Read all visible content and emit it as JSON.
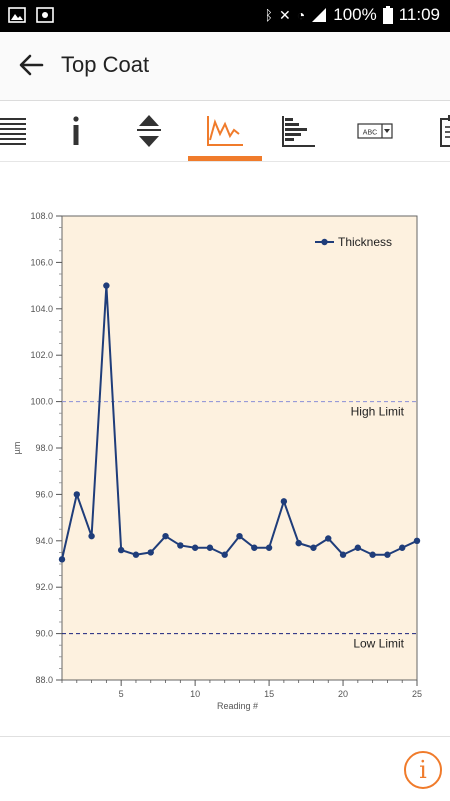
{
  "status": {
    "battery": "100%",
    "time": "11:09"
  },
  "header": {
    "title": "Top Coat"
  },
  "tabs": [
    {
      "icon": "list-lines-icon"
    },
    {
      "icon": "info-icon"
    },
    {
      "icon": "up-down-arrows-icon"
    },
    {
      "icon": "line-chart-icon",
      "active": true
    },
    {
      "icon": "histogram-icon"
    },
    {
      "icon": "dropdown-abc-icon",
      "label": "ABC"
    },
    {
      "icon": "clipboard-icon"
    }
  ],
  "colors": {
    "accent": "#f07b2b",
    "series": "#1f3d7a",
    "plot_bg": "#fdf1df"
  },
  "chart_data": {
    "type": "line",
    "xlabel": "Reading #",
    "ylabel": "µm",
    "xlim": [
      1,
      25
    ],
    "ylim": [
      88.0,
      108.0
    ],
    "xticks": [
      5,
      10,
      15,
      20,
      25
    ],
    "yticks": [
      "88.0",
      "90.0",
      "92.0",
      "94.0",
      "96.0",
      "98.0",
      "100.0",
      "102.0",
      "104.0",
      "106.0",
      "108.0"
    ],
    "legend": {
      "position": "top-right",
      "entries": [
        "Thickness"
      ]
    },
    "series": [
      {
        "name": "Thickness",
        "x": [
          1,
          2,
          3,
          4,
          5,
          6,
          7,
          8,
          9,
          10,
          11,
          12,
          13,
          14,
          15,
          16,
          17,
          18,
          19,
          20,
          21,
          22,
          23,
          24,
          25
        ],
        "values": [
          93.2,
          96.0,
          94.2,
          105.0,
          93.6,
          93.4,
          93.5,
          94.2,
          93.8,
          93.7,
          93.7,
          93.4,
          94.2,
          93.7,
          93.7,
          95.7,
          93.9,
          93.7,
          94.1,
          93.4,
          93.7,
          93.4,
          93.4,
          93.7,
          94.0
        ]
      }
    ],
    "limits": [
      {
        "label": "High Limit",
        "value": 100.0
      },
      {
        "label": "Low Limit",
        "value": 90.0
      }
    ]
  }
}
